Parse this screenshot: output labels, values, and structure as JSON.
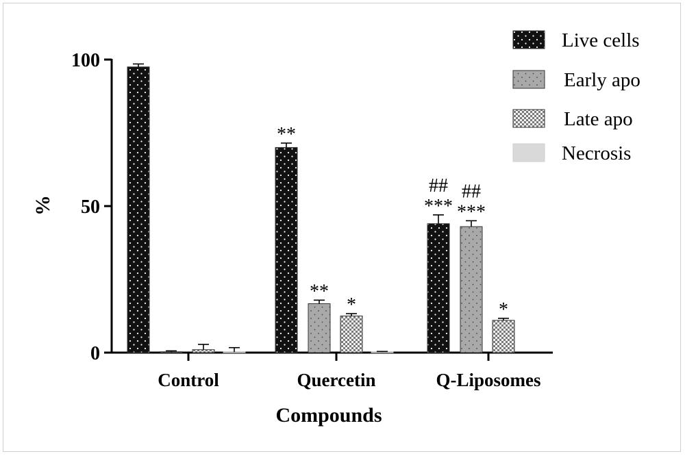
{
  "chart_data": {
    "type": "bar",
    "categories": [
      "Control",
      "Quercetin",
      "Q-Liposomes"
    ],
    "xlabel": "Compounds",
    "ylabel": "%",
    "ylim": [
      0,
      100
    ],
    "yticks": [
      0,
      50,
      100
    ],
    "legend_position": "top-right",
    "series": [
      {
        "name": "Live cells",
        "values": [
          97.5,
          70.0,
          44.0
        ],
        "errors": [
          1.0,
          1.5,
          3.0
        ],
        "significance": [
          "",
          "**",
          "***"
        ],
        "significance2": [
          "",
          "",
          "##"
        ]
      },
      {
        "name": "Early apo",
        "values": [
          0.3,
          16.7,
          43.0
        ],
        "errors": [
          0.3,
          1.2,
          2.0
        ],
        "significance": [
          "",
          "**",
          "***"
        ],
        "significance2": [
          "",
          "",
          "##"
        ]
      },
      {
        "name": "Late apo",
        "values": [
          1.0,
          12.5,
          11.0
        ],
        "errors": [
          1.8,
          0.8,
          0.7
        ],
        "significance": [
          "",
          "*",
          "*"
        ],
        "significance2": [
          "",
          "",
          ""
        ]
      },
      {
        "name": "Necrosis",
        "values": [
          0.2,
          0.2,
          0.0
        ],
        "errors": [
          1.5,
          0.2,
          0.0
        ],
        "significance": [
          "",
          "",
          ""
        ],
        "significance2": [
          "",
          "",
          ""
        ]
      }
    ],
    "colors": {
      "live": "#111111",
      "early": "#a9a9a9",
      "late": "#d4d4d4",
      "necrosis": "#d9d9d9"
    }
  }
}
